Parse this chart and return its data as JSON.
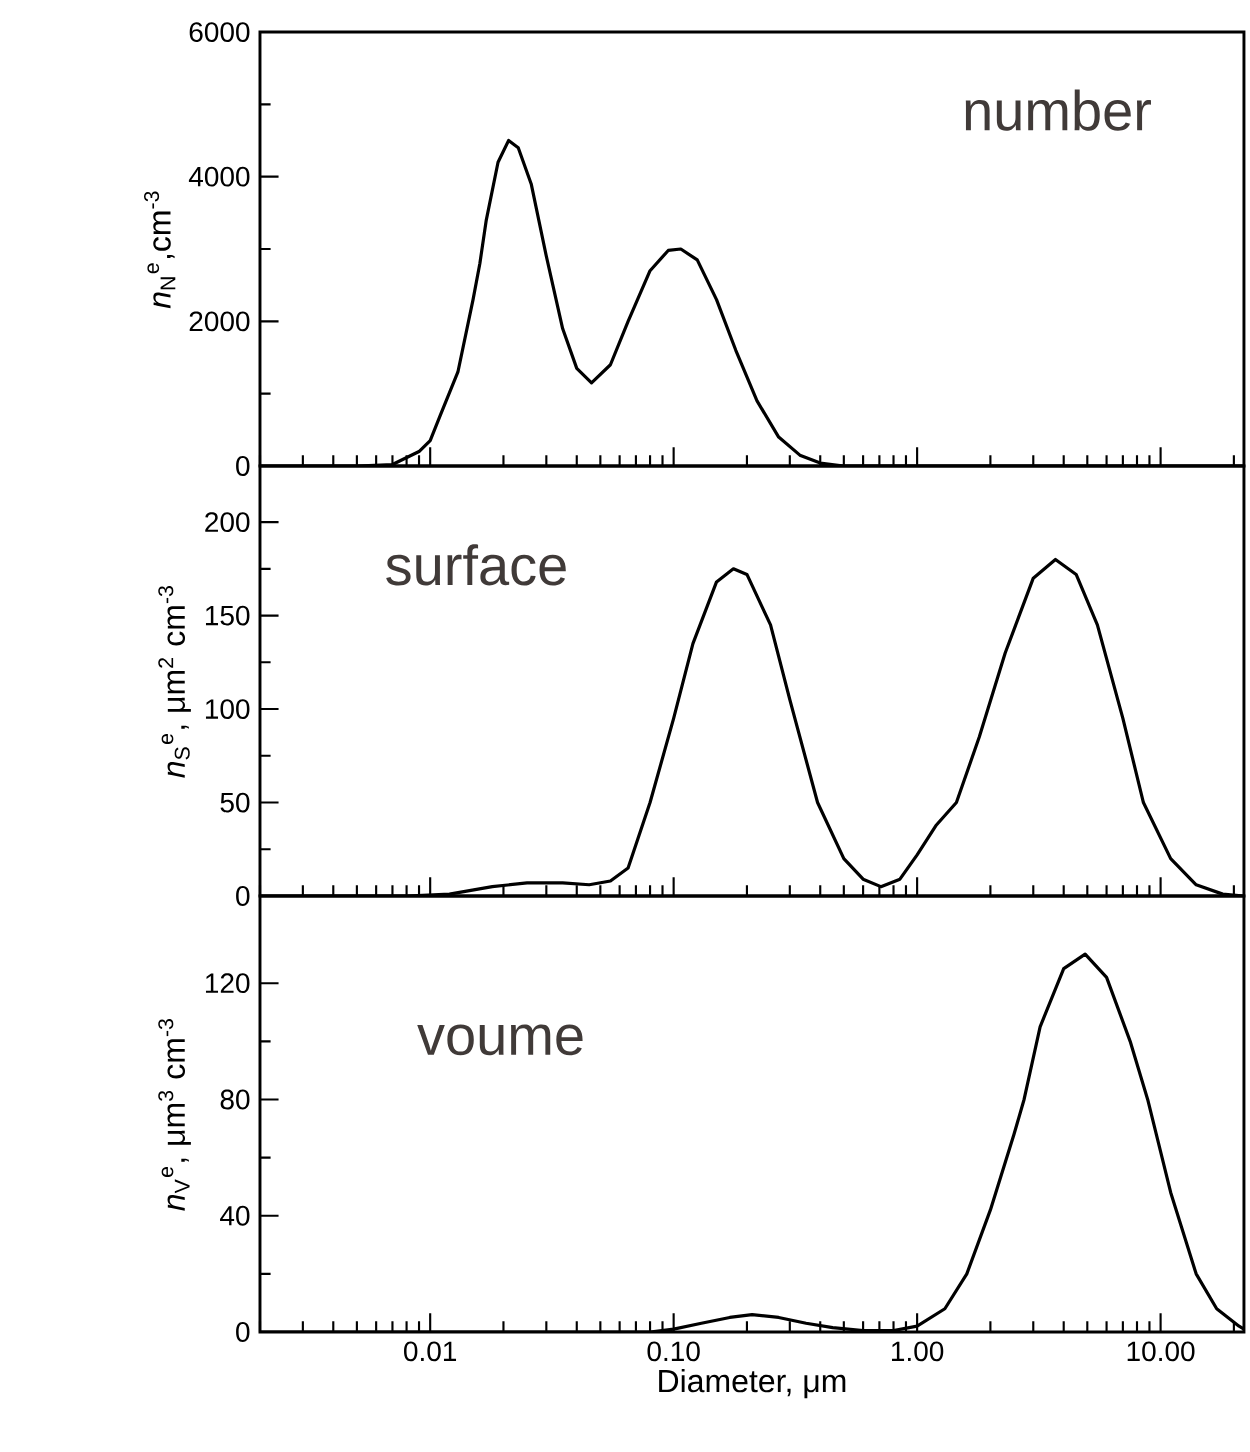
{
  "chart_data": [
    {
      "type": "line",
      "ylabel": "*n*$_{N}$$^{e}$,cm$^{-3}$",
      "annotations": [
        "number"
      ],
      "log": "x",
      "tick_labels": "y",
      "xlim": [
        0.002,
        22
      ],
      "xticks": [
        {
          "value": 0.01,
          "label": null
        },
        {
          "value": 0.1,
          "label": null
        },
        {
          "value": 1,
          "label": null
        },
        {
          "value": 10,
          "label": null
        }
      ],
      "ylim": [
        0,
        6000
      ],
      "yticks": [
        0,
        2000,
        4000,
        6000
      ],
      "series": [
        {
          "color": "#000000",
          "x": [
            0.002,
            0.005,
            0.007,
            0.009,
            0.01,
            0.011,
            0.013,
            0.015,
            0.016,
            0.017,
            0.019,
            0.021,
            0.023,
            0.026,
            0.03,
            0.035,
            0.04,
            0.046,
            0.055,
            0.065,
            0.08,
            0.095,
            0.107,
            0.125,
            0.15,
            0.18,
            0.22,
            0.27,
            0.33,
            0.4,
            0.5,
            22
          ],
          "values": [
            0,
            0,
            20,
            200,
            350,
            700,
            1300,
            2300,
            2800,
            3400,
            4200,
            4500,
            4400,
            3900,
            2900,
            1900,
            1350,
            1150,
            1400,
            2000,
            2700,
            2980,
            3000,
            2850,
            2300,
            1600,
            900,
            400,
            150,
            40,
            0,
            0
          ]
        }
      ]
    },
    {
      "type": "line",
      "ylabel": "*n*$_{S}$$^{e}$, μm$^{2}$ cm$^{-3}$",
      "annotations": [
        "surface"
      ],
      "log": "x",
      "tick_labels": "y",
      "xlim": [
        0.002,
        22
      ],
      "xticks": [
        {
          "value": 0.01,
          "label": null
        },
        {
          "value": 0.1,
          "label": null
        },
        {
          "value": 1,
          "label": null
        },
        {
          "value": 10,
          "label": null
        }
      ],
      "ylim": [
        0,
        230
      ],
      "yticks": [
        0,
        50,
        100,
        150,
        200
      ],
      "series": [
        {
          "color": "#000000",
          "x": [
            0.002,
            0.008,
            0.012,
            0.018,
            0.025,
            0.035,
            0.045,
            0.055,
            0.065,
            0.08,
            0.1,
            0.12,
            0.15,
            0.176,
            0.2,
            0.25,
            0.3,
            0.39,
            0.5,
            0.6,
            0.71,
            0.85,
            1.0,
            1.2,
            1.45,
            1.8,
            2.3,
            3.0,
            3.7,
            4.5,
            5.5,
            7,
            8.5,
            11,
            14,
            18,
            22
          ],
          "values": [
            0,
            0,
            1,
            5,
            7,
            7,
            6,
            8,
            15,
            50,
            95,
            135,
            168,
            175,
            172,
            145,
            105,
            50,
            20,
            9,
            5,
            9,
            22,
            38,
            50,
            85,
            130,
            170,
            180,
            172,
            145,
            95,
            50,
            20,
            6,
            1,
            0
          ]
        }
      ]
    },
    {
      "type": "line",
      "ylabel": "*n*$_{V}$$^{e}$, μm$^{3}$ cm$^{-3}$",
      "xlabel": "Diameter, μm",
      "annotations": [
        "voume"
      ],
      "log": "x",
      "xlim": [
        0.002,
        22
      ],
      "xticks": [
        {
          "value": 0.01,
          "label": "0.01"
        },
        {
          "value": 0.1,
          "label": "0.10"
        },
        {
          "value": 1,
          "label": "1.00"
        },
        {
          "value": 10,
          "label": "10.00"
        }
      ],
      "ylim": [
        0,
        150
      ],
      "yticks": [
        0,
        40,
        80,
        120
      ],
      "series": [
        {
          "color": "#000000",
          "x": [
            0.002,
            0.08,
            0.1,
            0.13,
            0.17,
            0.21,
            0.27,
            0.35,
            0.45,
            0.6,
            0.8,
            1.0,
            1.3,
            1.6,
            2.0,
            2.5,
            2.75,
            3.2,
            4,
            4.9,
            6,
            7.5,
            8.85,
            11,
            14,
            17,
            21,
            22
          ],
          "values": [
            0,
            0,
            1,
            3,
            5,
            6,
            5,
            3,
            1.5,
            0.5,
            0.5,
            2,
            8,
            20,
            42,
            68,
            80,
            105,
            125,
            130,
            122,
            100,
            80,
            48,
            20,
            8,
            2,
            1
          ]
        }
      ]
    }
  ]
}
